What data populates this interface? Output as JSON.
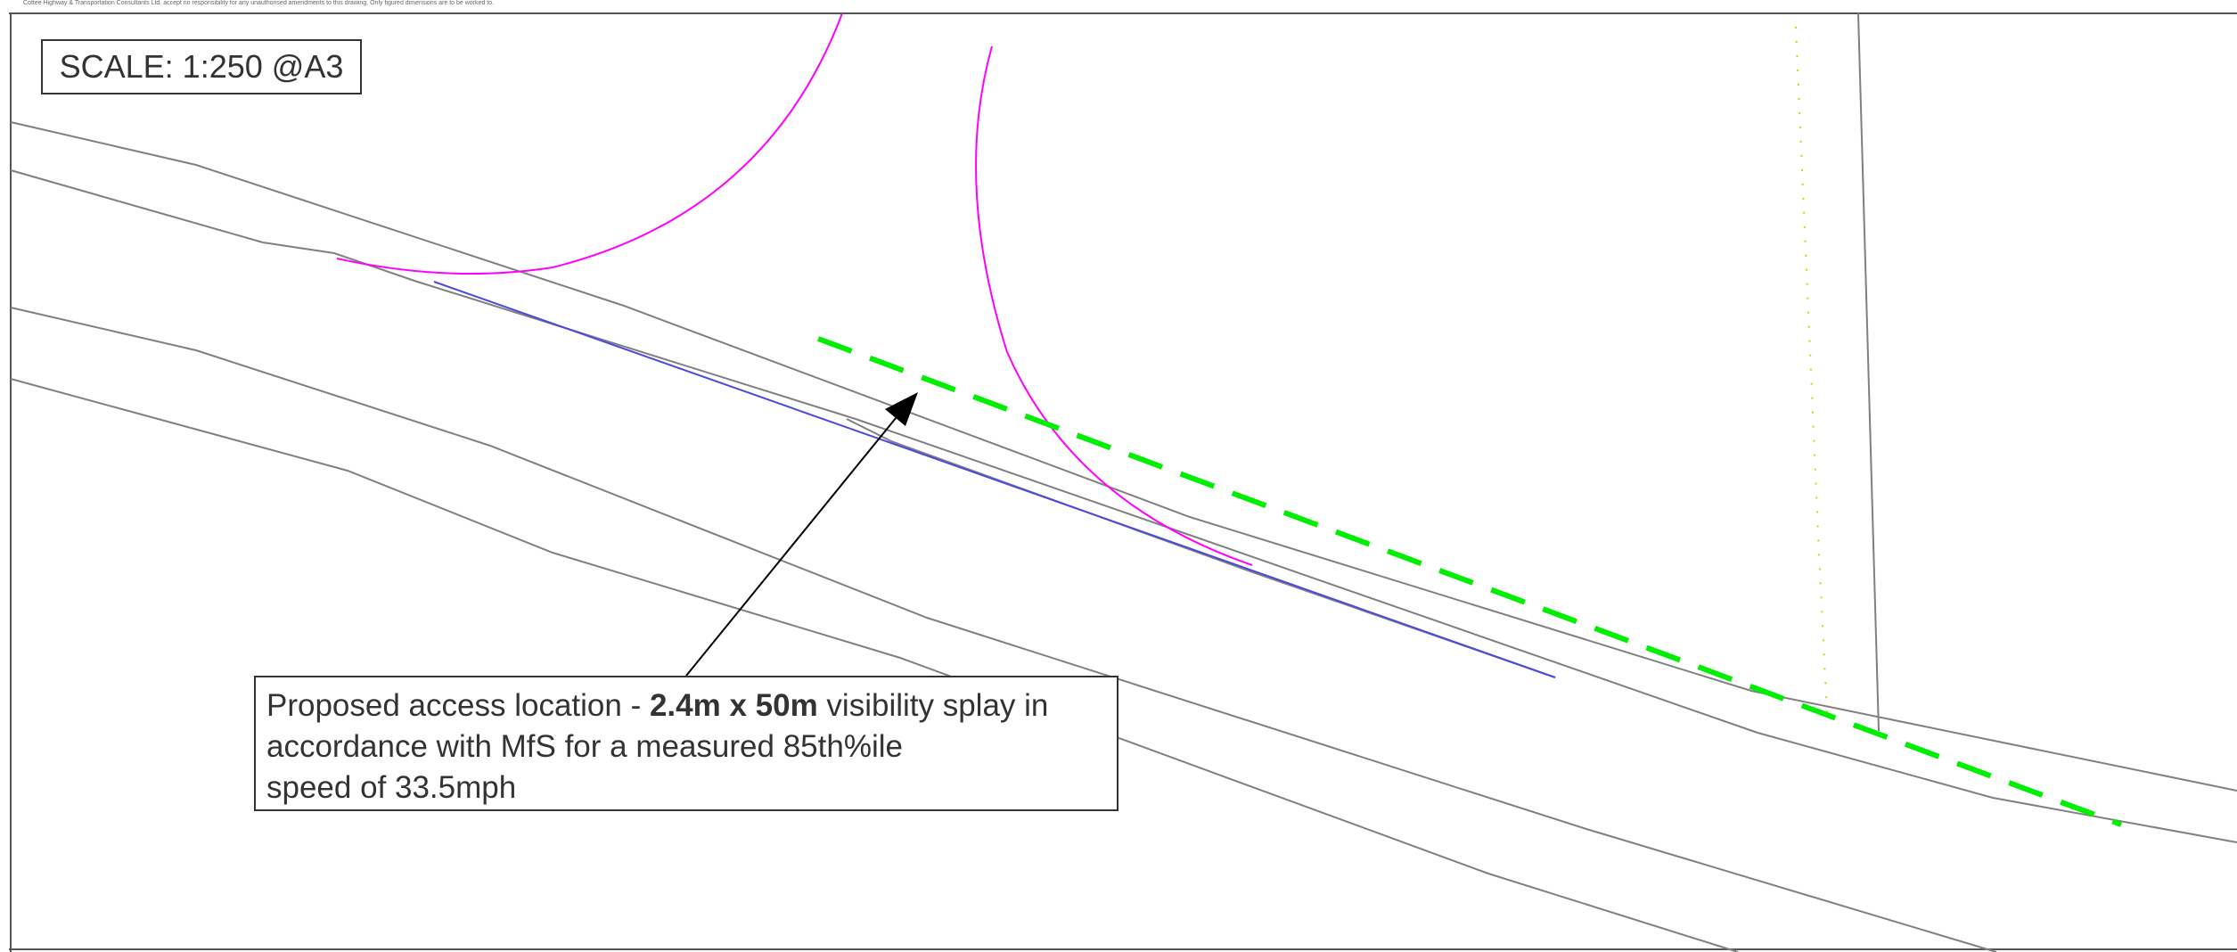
{
  "disclaimer": "Cottee Highway & Transportation Consultants Ltd. accept no responsibility for any unauthorised amendments to this drawing. Only figured dimensions are to be worked to.",
  "scale_label": "SCALE: 1:250 @A3",
  "annotation": {
    "part1": "Proposed access location - ",
    "bold": "2.4m x 50m",
    "part2": " visibility splay in",
    "line2": "accordance with MfS for a measured 85th%ile",
    "line3": "speed of 33.5mph"
  },
  "colors": {
    "road_edge": "#808080",
    "swept_path": "#ff00ff",
    "kerb_line": "#4a4adf",
    "visibility_splay": "#00ee00",
    "boundary_dotted": "#c8d800",
    "frame": "#555555"
  }
}
